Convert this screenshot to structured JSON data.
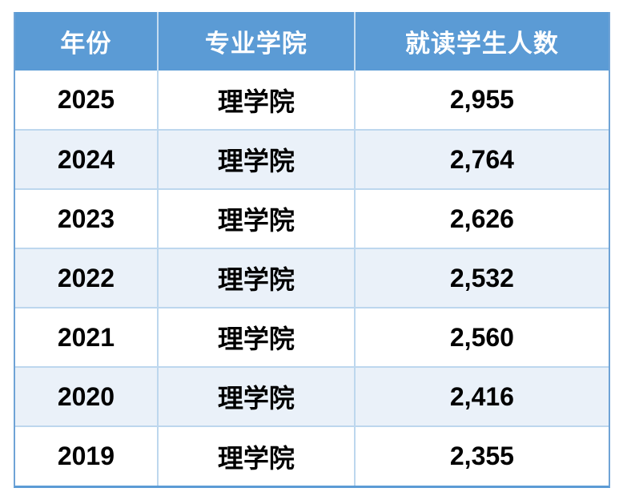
{
  "table": {
    "columns": [
      {
        "key": "year",
        "label": "年份"
      },
      {
        "key": "college",
        "label": "专业学院"
      },
      {
        "key": "students",
        "label": "就读学生人数"
      }
    ],
    "rows": [
      {
        "year": "2025",
        "college": "理学院",
        "students": "2,955"
      },
      {
        "year": "2024",
        "college": "理学院",
        "students": "2,764"
      },
      {
        "year": "2023",
        "college": "理学院",
        "students": "2,626"
      },
      {
        "year": "2022",
        "college": "理学院",
        "students": "2,532"
      },
      {
        "year": "2021",
        "college": "理学院",
        "students": "2,560"
      },
      {
        "year": "2020",
        "college": "理学院",
        "students": "2,416"
      },
      {
        "year": "2019",
        "college": "理学院",
        "students": "2,355"
      }
    ],
    "colors": {
      "header_bg": "#5B9BD5",
      "header_text": "#FFFFFF",
      "alt_row_bg": "#EAF1F9",
      "grid_line": "#BDD7EE",
      "outer_border": "#5B9BD5",
      "cell_text": "#000000"
    }
  },
  "chart_data": {
    "type": "table",
    "title": "",
    "columns": [
      "年份",
      "专业学院",
      "就读学生人数"
    ],
    "rows": [
      [
        "2025",
        "理学院",
        2955
      ],
      [
        "2024",
        "理学院",
        2764
      ],
      [
        "2023",
        "理学院",
        2626
      ],
      [
        "2022",
        "理学院",
        2532
      ],
      [
        "2021",
        "理学院",
        2560
      ],
      [
        "2020",
        "理学院",
        2416
      ],
      [
        "2019",
        "理学院",
        2355
      ]
    ]
  }
}
